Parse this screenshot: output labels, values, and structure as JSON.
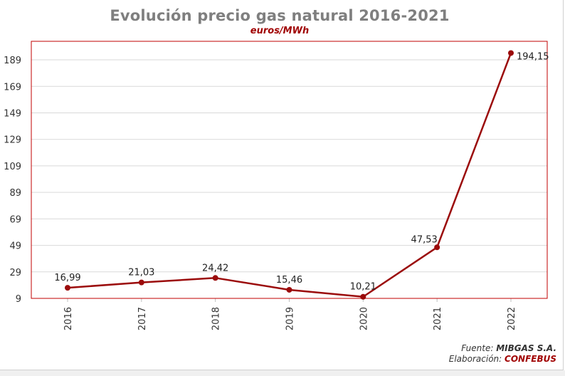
{
  "title": "Evolución precio gas natural 2016-2021",
  "subtitle": "euros/MWh",
  "source": {
    "fuente_label": "Fuente:",
    "fuente_value": "MIBGAS S.A.",
    "elaboracion_label": "Elaboración:",
    "elaboracion_value": "CONFEBUS"
  },
  "colors": {
    "series": "#9b0b0b",
    "plot_border": "#c00000",
    "grid": "#d9d9d9",
    "title": "#7f7f7f",
    "subtitle": "#a00000"
  },
  "chart_data": {
    "type": "line",
    "title": "Evolución precio gas natural 2016-2021",
    "subtitle": "euros/MWh",
    "xlabel": "",
    "ylabel": "",
    "categories": [
      "2016",
      "2017",
      "2018",
      "2019",
      "2020",
      "2021",
      "2022"
    ],
    "series": [
      {
        "values": [
          16.99,
          21.03,
          24.42,
          15.46,
          10.21,
          47.53,
          194.15
        ],
        "labels": [
          "16,99",
          "21,03",
          "24,42",
          "15,46",
          "10,21",
          "47,53",
          "194,15"
        ]
      }
    ],
    "y_ticks": [
      9,
      29,
      49,
      69,
      89,
      109,
      129,
      149,
      169,
      189
    ],
    "ylim": [
      9,
      203
    ],
    "grid": true,
    "legend": "none",
    "x_tick_rotation": "vertical"
  }
}
